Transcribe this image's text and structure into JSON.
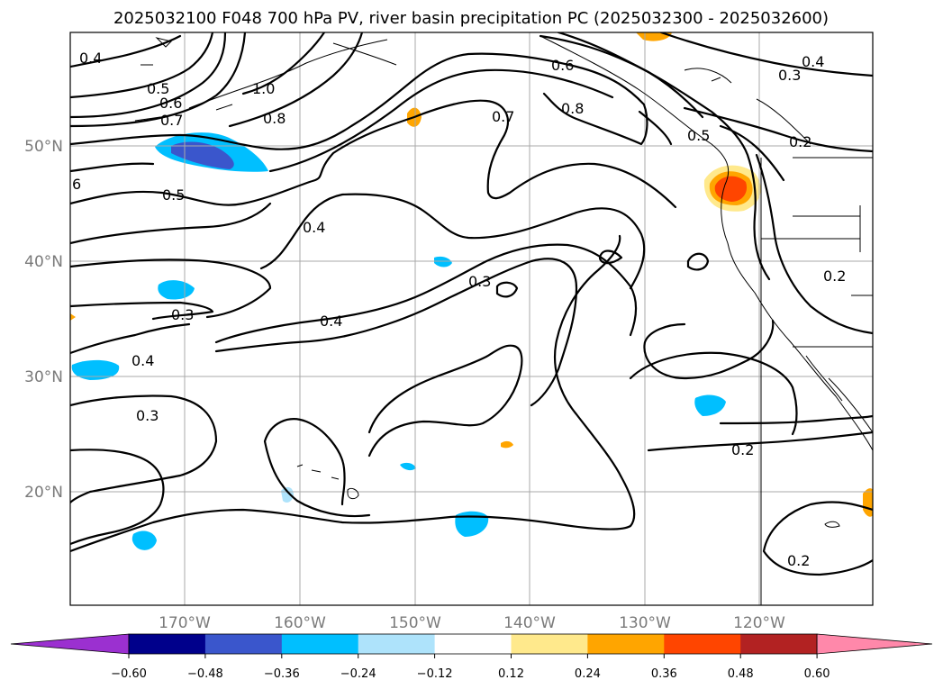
{
  "title": "2025032100 F048 700 hPa PV, river basin precipitation PC (2025032300 - 2025032600)",
  "map": {
    "lat_labels": [
      "50°N",
      "40°N",
      "30°N",
      "20°N"
    ],
    "lon_labels": [
      "170°W",
      "160°W",
      "150°W",
      "140°W",
      "130°W",
      "120°W"
    ],
    "grid": true,
    "contour_labels": [
      "0.4",
      "0.5",
      "0.6",
      "0.7",
      "1.0",
      "0.8",
      "0.6",
      "0.8",
      "0.7",
      "0.4",
      "0.3",
      "0.2",
      "0.5",
      "6",
      "0.5",
      "0.4",
      "0.3",
      "0.4",
      "0.3",
      "0.4",
      "0.3",
      "0.2",
      "0.2",
      "0.2"
    ]
  },
  "colorbar": {
    "ticks": [
      "−0.60",
      "−0.48",
      "−0.36",
      "−0.24",
      "−0.12",
      "0.12",
      "0.24",
      "0.36",
      "0.48",
      "0.60"
    ],
    "colors": [
      "#9b30d0",
      "#00008b",
      "#3a56cc",
      "#00bfff",
      "#aee3fb",
      "#ffffff",
      "#ffe98c",
      "#ffa500",
      "#ff4500",
      "#b22222",
      "#ff88aa"
    ]
  }
}
